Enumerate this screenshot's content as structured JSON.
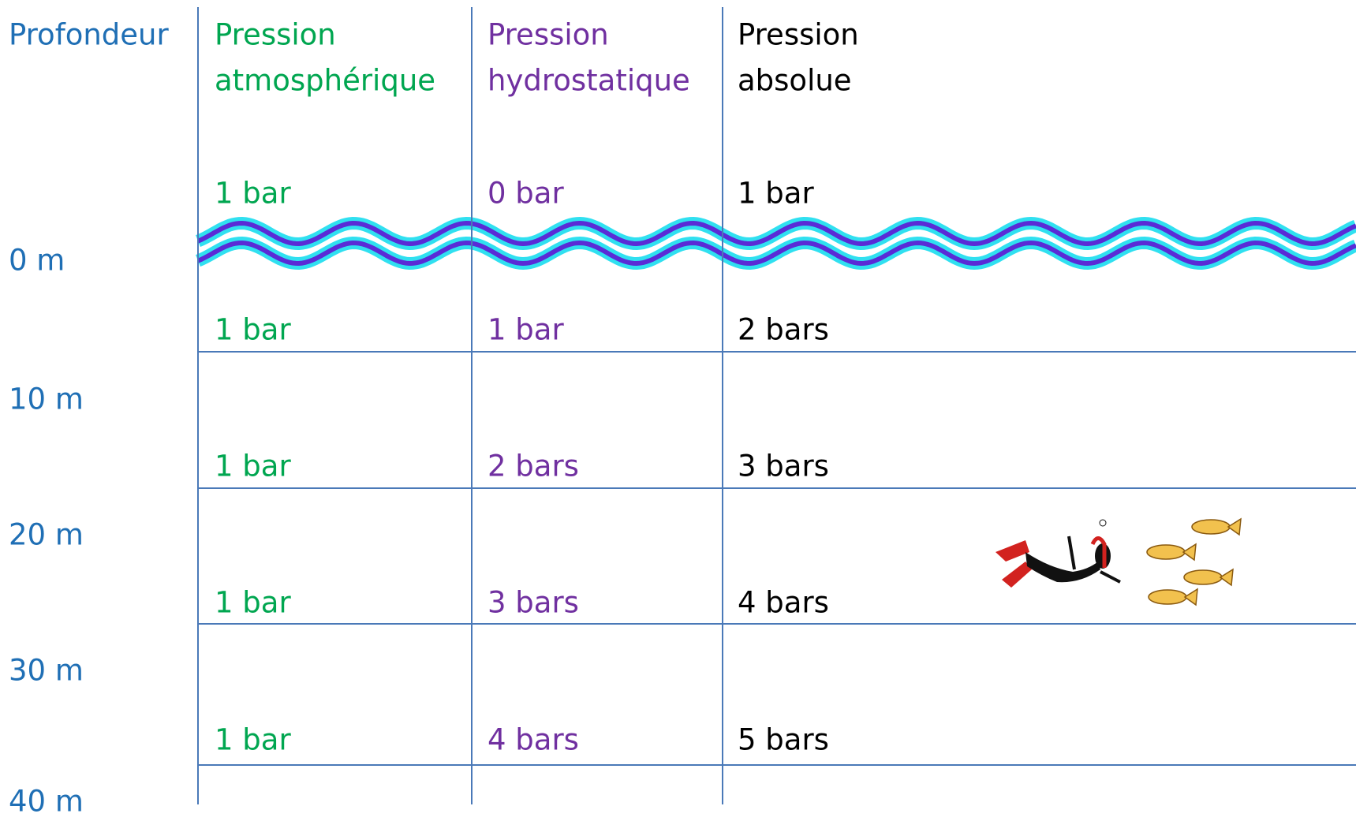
{
  "headers": {
    "depth": "Profondeur",
    "atmospheric": [
      "Pression",
      "atmosphérique"
    ],
    "hydrostatic": [
      "Pression",
      "hydrostatique"
    ],
    "absolute": [
      "Pression",
      "absolue"
    ]
  },
  "depths": [
    "0 m",
    "10 m",
    "20 m",
    "30 m",
    "40 m"
  ],
  "rows": [
    [
      "1 bar",
      "0 bar",
      "1 bar"
    ],
    [
      "1 bar",
      "1 bar",
      "2 bars"
    ],
    [
      "1 bar",
      "2 bars",
      "3 bars"
    ],
    [
      "1 bar",
      "3 bars",
      "4 bars"
    ],
    [
      "1 bar",
      "4 bars",
      "5 bars"
    ]
  ]
}
